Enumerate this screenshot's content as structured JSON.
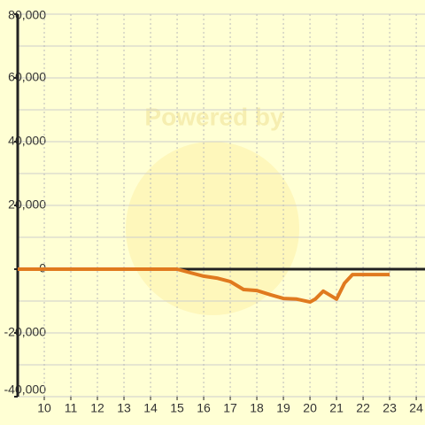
{
  "chart_data": {
    "type": "line",
    "watermark": "Powered by",
    "x": [
      9,
      10,
      11,
      12,
      13,
      14,
      15,
      15.5,
      16,
      16.5,
      17,
      17.5,
      18,
      18.5,
      19,
      19.5,
      20,
      20.2,
      20.5,
      21,
      21.3,
      21.6,
      22,
      22.5,
      23
    ],
    "series": [
      {
        "color": "#e07a1f",
        "values": [
          0,
          0,
          0,
          0,
          0,
          0,
          0,
          -1100,
          -2200,
          -2800,
          -3900,
          -6400,
          -6700,
          -8000,
          -9200,
          -9400,
          -10300,
          -9400,
          -6900,
          -9400,
          -4400,
          -1700,
          -1700,
          -1700,
          -1700
        ]
      }
    ],
    "xlim": [
      9,
      24.33
    ],
    "xticks": [
      10,
      11,
      12,
      13,
      14,
      15,
      16,
      17,
      18,
      19,
      20,
      21,
      22,
      23,
      24
    ],
    "ylim": [
      -40000,
      80000
    ],
    "yticks": [
      {
        "value": -40000,
        "label": "-40,000"
      },
      {
        "value": -20000,
        "label": "-20,000"
      },
      0,
      {
        "value": 20000,
        "label": "20,000"
      },
      {
        "value": 40000,
        "label": "40,000"
      },
      {
        "value": 60000,
        "label": "60,000"
      },
      {
        "value": 80000,
        "label": "80,000"
      }
    ],
    "y_minor_ticks": [
      -30000,
      -10000,
      10000,
      30000,
      50000,
      70000
    ],
    "grid": true
  }
}
